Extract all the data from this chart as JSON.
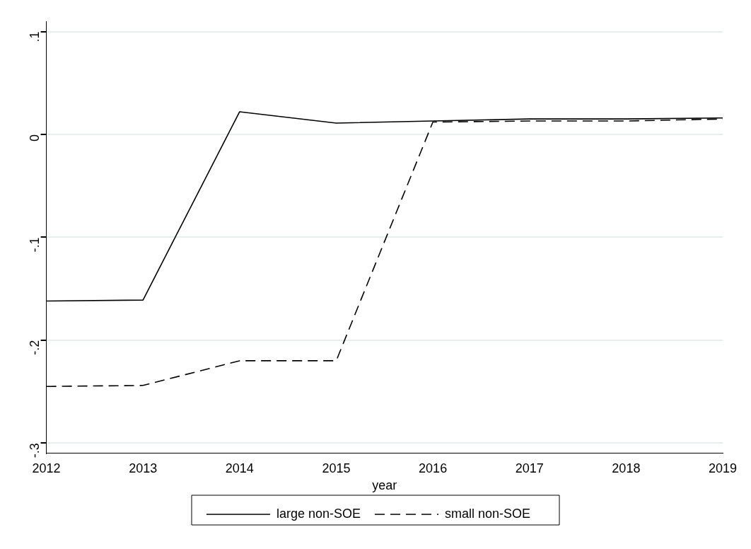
{
  "chart_data": {
    "type": "line",
    "xlabel": "year",
    "categories": [
      "2012",
      "2013",
      "2014",
      "2015",
      "2016",
      "2017",
      "2018",
      "2019"
    ],
    "series": [
      {
        "name": "large non-SOE",
        "color": "#000000",
        "line_style": "solid",
        "values": [
          -0.162,
          -0.161,
          0.022,
          0.011,
          0.013,
          0.015,
          0.015,
          0.016
        ]
      },
      {
        "name": "small non-SOE",
        "color": "#000000",
        "line_style": "dashed",
        "values": [
          -0.245,
          -0.244,
          -0.22,
          -0.22,
          0.012,
          0.013,
          0.013,
          0.015
        ]
      }
    ],
    "ylim": [
      -0.31,
      0.11
    ],
    "yticks": [
      {
        "value": -0.3,
        "label": "-.3"
      },
      {
        "value": -0.2,
        "label": "-.2"
      },
      {
        "value": -0.1,
        "label": "-.1"
      },
      {
        "value": 0,
        "label": "0"
      },
      {
        "value": 0.1,
        "label": ".1"
      }
    ],
    "grid": "y",
    "legend": "bottom",
    "marker": "none"
  }
}
